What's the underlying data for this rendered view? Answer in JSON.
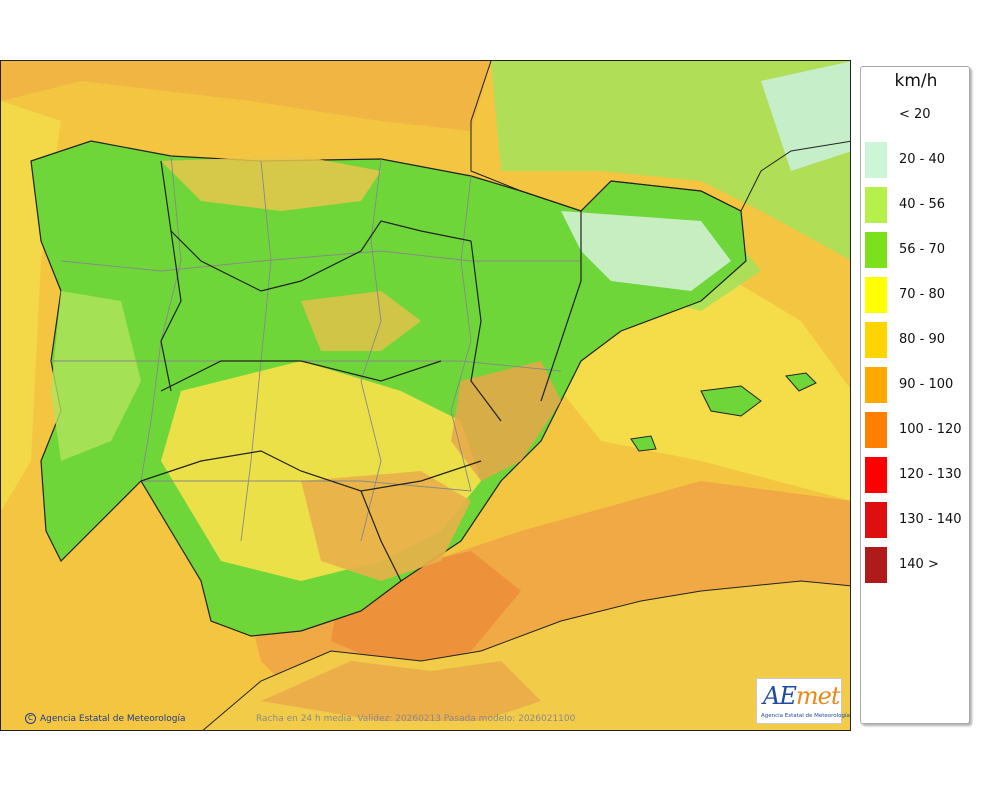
{
  "map": {
    "copyright": "Agencia Estatal de Meteorología",
    "caption": "Racha en 24 h media. Validez: 20260213 Pasada modelo: 2026021100",
    "logo": {
      "mark_a": "AE",
      "mark_b": "met",
      "org": "Agencia Estatal de Meteorología"
    },
    "colors": {
      "sea_base": "#f3c541",
      "sea_orange": "#f0a040",
      "land_green": "#6fd63a",
      "land_yellow": "#f2e04a",
      "land_orange": "#e9a64a",
      "light_green": "#b2e35c",
      "pale": "#d6f2d8",
      "border": "#222222",
      "province": "#888888"
    }
  },
  "legend": {
    "unit": "km/h",
    "items": [
      {
        "label": "< 20",
        "color": ""
      },
      {
        "label": "20 - 40",
        "color": "#cdf5d8"
      },
      {
        "label": "40 - 56",
        "color": "#b6f04a"
      },
      {
        "label": "56 - 70",
        "color": "#7ce01a"
      },
      {
        "label": "70 - 80",
        "color": "#ffff00"
      },
      {
        "label": "80 - 90",
        "color": "#ffd400"
      },
      {
        "label": "90 - 100",
        "color": "#ffaa00"
      },
      {
        "label": "100 - 120",
        "color": "#ff8000"
      },
      {
        "label": "120 - 130",
        "color": "#ff0000"
      },
      {
        "label": "130 - 140",
        "color": "#dc1010"
      },
      {
        "label": "140 >",
        "color": "#b01a1a"
      }
    ]
  }
}
